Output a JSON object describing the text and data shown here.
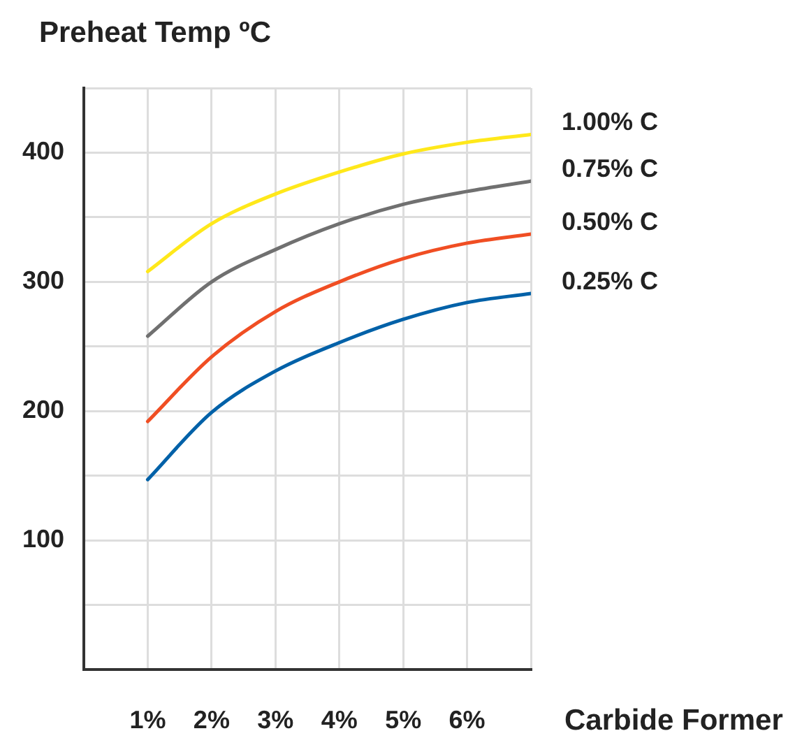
{
  "chart_data": {
    "type": "line",
    "xlabel": "Carbide Former",
    "ylabel": "Preheat Temp ºC",
    "x": [
      1,
      2,
      3,
      4,
      5,
      6,
      7
    ],
    "xlim": [
      0,
      7
    ],
    "xticks": [
      {
        "value": 1,
        "label": "1%"
      },
      {
        "value": 2,
        "label": "2%"
      },
      {
        "value": 3,
        "label": "3%"
      },
      {
        "value": 4,
        "label": "4%"
      },
      {
        "value": 5,
        "label": "5%"
      },
      {
        "value": 6,
        "label": "6%"
      },
      {
        "value": 7,
        "label": null
      }
    ],
    "ylim": [
      0,
      450
    ],
    "yticks": [
      {
        "value": 50,
        "label": null
      },
      100,
      {
        "value": 150,
        "label": null
      },
      200,
      {
        "value": 250,
        "label": null
      },
      300,
      {
        "value": 350,
        "label": null
      },
      400,
      {
        "value": 450,
        "label": null
      }
    ],
    "grid": true,
    "legend": false,
    "marker": "none",
    "line_style": "solid",
    "series": [
      {
        "name": "1.00% C",
        "color": "#ffe81a",
        "values": [
          308,
          345,
          368,
          385,
          399,
          408,
          414
        ]
      },
      {
        "name": "0.75% C",
        "color": "#707070",
        "values": [
          258,
          300,
          325,
          345,
          360,
          370,
          378
        ]
      },
      {
        "name": "0.50% C",
        "color": "#f04e23",
        "values": [
          192,
          242,
          277,
          300,
          318,
          330,
          337
        ]
      },
      {
        "name": "0.25% C",
        "color": "#0061a8",
        "values": [
          147,
          199,
          231,
          253,
          271,
          284,
          291
        ]
      }
    ]
  }
}
